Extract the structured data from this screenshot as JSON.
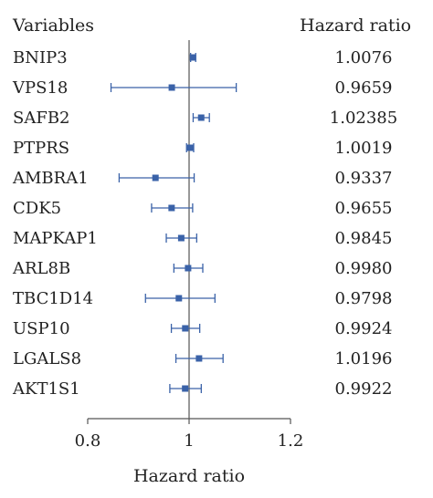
{
  "chart_data": {
    "type": "forest",
    "xlabel": "Hazard ratio",
    "xlim": [
      0.8,
      1.2
    ],
    "xticks": [
      "0.8",
      "1",
      "1.2"
    ],
    "reference_line": 1,
    "columns": {
      "variables": "Variables",
      "hazard_ratio": "Hazard ratio"
    },
    "series_color": "#3a62a8",
    "rows": [
      {
        "variable": "BNIP3",
        "hr": 1.0076,
        "hr_label": "1.0076",
        "lower": 1.003,
        "upper": 1.013
      },
      {
        "variable": "VPS18",
        "hr": 0.9659,
        "hr_label": "0.9659",
        "lower": 0.846,
        "upper": 1.093
      },
      {
        "variable": "SAFB2",
        "hr": 1.02385,
        "hr_label": "1.02385",
        "lower": 1.008,
        "upper": 1.04
      },
      {
        "variable": "PTPRS",
        "hr": 1.0019,
        "hr_label": "1.0019",
        "lower": 0.995,
        "upper": 1.009
      },
      {
        "variable": "AMBRA1",
        "hr": 0.9337,
        "hr_label": "0.9337",
        "lower": 0.862,
        "upper": 1.01
      },
      {
        "variable": "CDK5",
        "hr": 0.9655,
        "hr_label": "0.9655",
        "lower": 0.926,
        "upper": 1.007
      },
      {
        "variable": "MAPKAP1",
        "hr": 0.9845,
        "hr_label": "0.9845",
        "lower": 0.955,
        "upper": 1.015
      },
      {
        "variable": "ARL8B",
        "hr": 0.998,
        "hr_label": "0.9980",
        "lower": 0.97,
        "upper": 1.027
      },
      {
        "variable": "TBC1D14",
        "hr": 0.9798,
        "hr_label": "0.9798",
        "lower": 0.914,
        "upper": 1.051
      },
      {
        "variable": "USP10",
        "hr": 0.9924,
        "hr_label": "0.9924",
        "lower": 0.965,
        "upper": 1.021
      },
      {
        "variable": "LGALS8",
        "hr": 1.0196,
        "hr_label": "1.0196",
        "lower": 0.974,
        "upper": 1.067
      },
      {
        "variable": "AKT1S1",
        "hr": 0.9922,
        "hr_label": "0.9922",
        "lower": 0.962,
        "upper": 1.024
      }
    ]
  }
}
